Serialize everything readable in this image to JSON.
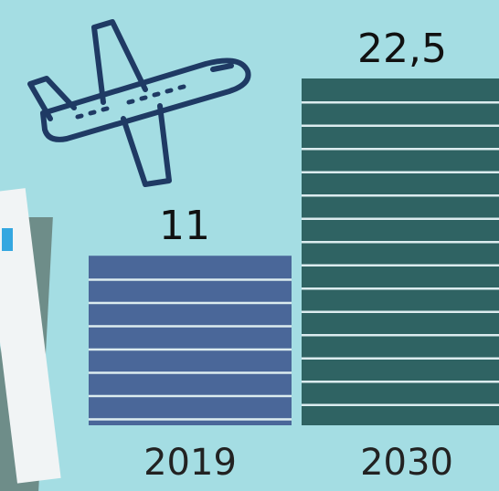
{
  "icons": [
    "airplane-icon",
    "document-icon"
  ],
  "colors": {
    "background": "#a4dde3",
    "bar_2019": "#4a6799",
    "bar_2030": "#2f6363",
    "stripe": "#dcecef",
    "icon_stroke": "#1f3a64"
  },
  "chart_data": {
    "type": "bar",
    "categories": [
      "2019",
      "2030"
    ],
    "values": [
      11,
      22.5
    ],
    "data_labels": [
      "11",
      "22,5"
    ],
    "title": "",
    "xlabel": "",
    "ylabel": "",
    "ylim": [
      0,
      22.5
    ],
    "grid": false
  }
}
